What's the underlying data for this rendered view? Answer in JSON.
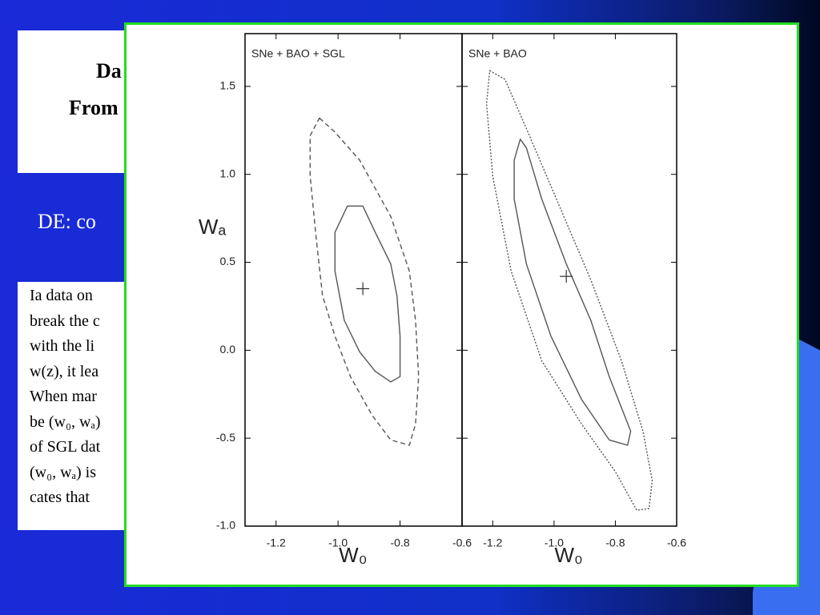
{
  "slide": {
    "title_lines": [
      "Da",
      "From"
    ],
    "subtitle": "DE:  co",
    "body_lines": [
      "Ia data on",
      "break the c",
      "with the li",
      "w(z), it lea",
      "When mar",
      "be (w₀, wₐ)",
      "of SGL dat",
      "(w₀, wₐ) is",
      "cates that"
    ]
  },
  "chart_data": [
    {
      "type": "contour",
      "title": "SNe + BAO + SGL",
      "xlabel": "W₀",
      "ylabel": "Wₐ",
      "xlim": [
        -1.3,
        -0.6
      ],
      "ylim": [
        -1.0,
        1.8
      ],
      "xticks": [
        -1.2,
        {
          "value": -1.0,
          "label": "-1.0"
        },
        -0.8,
        -0.6
      ],
      "yticks": [
        {
          "value": -1.0,
          "label": "-1.0"
        },
        -0.5,
        {
          "value": 0.0,
          "label": "0.0"
        },
        0.5,
        {
          "value": 1.0,
          "label": "1.0"
        },
        1.5
      ],
      "ytick_labels": true,
      "color": "#555555",
      "series": [
        {
          "style": "dashed",
          "x": [
            -1.06,
            -1.01,
            -0.93,
            -0.83,
            -0.77,
            -0.75,
            -0.74,
            -0.75,
            -0.77,
            -0.83,
            -0.89,
            -0.96,
            -1.01,
            -1.05,
            -1.07,
            -1.09,
            -1.09
          ],
          "y": [
            1.32,
            1.24,
            1.08,
            0.76,
            0.45,
            0.17,
            -0.15,
            -0.42,
            -0.54,
            -0.51,
            -0.37,
            -0.15,
            0.08,
            0.31,
            0.63,
            0.99,
            1.22
          ]
        },
        {
          "style": "solid",
          "x": [
            -0.97,
            -0.92,
            -0.88,
            -0.83,
            -0.81,
            -0.8,
            -0.8,
            -0.83,
            -0.88,
            -0.93,
            -0.98,
            -1.01,
            -1.01
          ],
          "y": [
            0.82,
            0.82,
            0.67,
            0.49,
            0.31,
            0.08,
            -0.15,
            -0.18,
            -0.12,
            -0.01,
            0.17,
            0.45,
            0.67
          ]
        }
      ],
      "best_fit": {
        "x": -0.92,
        "y": 0.35
      }
    },
    {
      "type": "contour",
      "title": "SNe + BAO",
      "xlabel": "W₀",
      "xlim": [
        -1.3,
        -0.6
      ],
      "ylim": [
        -1.0,
        1.8
      ],
      "xticks": [
        -1.2,
        {
          "value": -1.0,
          "label": "-1.0"
        },
        -0.8,
        -0.6
      ],
      "yticks": [
        -1.0,
        -0.5,
        0.0,
        0.5,
        1.0,
        1.5
      ],
      "ytick_labels": false,
      "color": "#555555",
      "series": [
        {
          "style": "dotted",
          "x": [
            -1.21,
            -1.16,
            -1.09,
            -0.98,
            -0.88,
            -0.78,
            -0.71,
            -0.68,
            -0.69,
            -0.73,
            -0.8,
            -0.91,
            -1.04,
            -1.14,
            -1.2,
            -1.22
          ],
          "y": [
            1.59,
            1.54,
            1.26,
            0.81,
            0.4,
            -0.06,
            -0.46,
            -0.74,
            -0.9,
            -0.91,
            -0.69,
            -0.42,
            -0.06,
            0.45,
            0.99,
            1.4
          ]
        },
        {
          "style": "solid",
          "x": [
            -1.11,
            -1.09,
            -1.04,
            -0.96,
            -0.88,
            -0.82,
            -0.75,
            -0.76,
            -0.82,
            -0.91,
            -1.01,
            -1.09,
            -1.13,
            -1.13
          ],
          "y": [
            1.2,
            1.15,
            0.86,
            0.49,
            0.17,
            -0.15,
            -0.46,
            -0.54,
            -0.51,
            -0.28,
            0.08,
            0.49,
            0.86,
            1.08
          ]
        }
      ],
      "best_fit": {
        "x": -0.96,
        "y": 0.42
      }
    }
  ]
}
